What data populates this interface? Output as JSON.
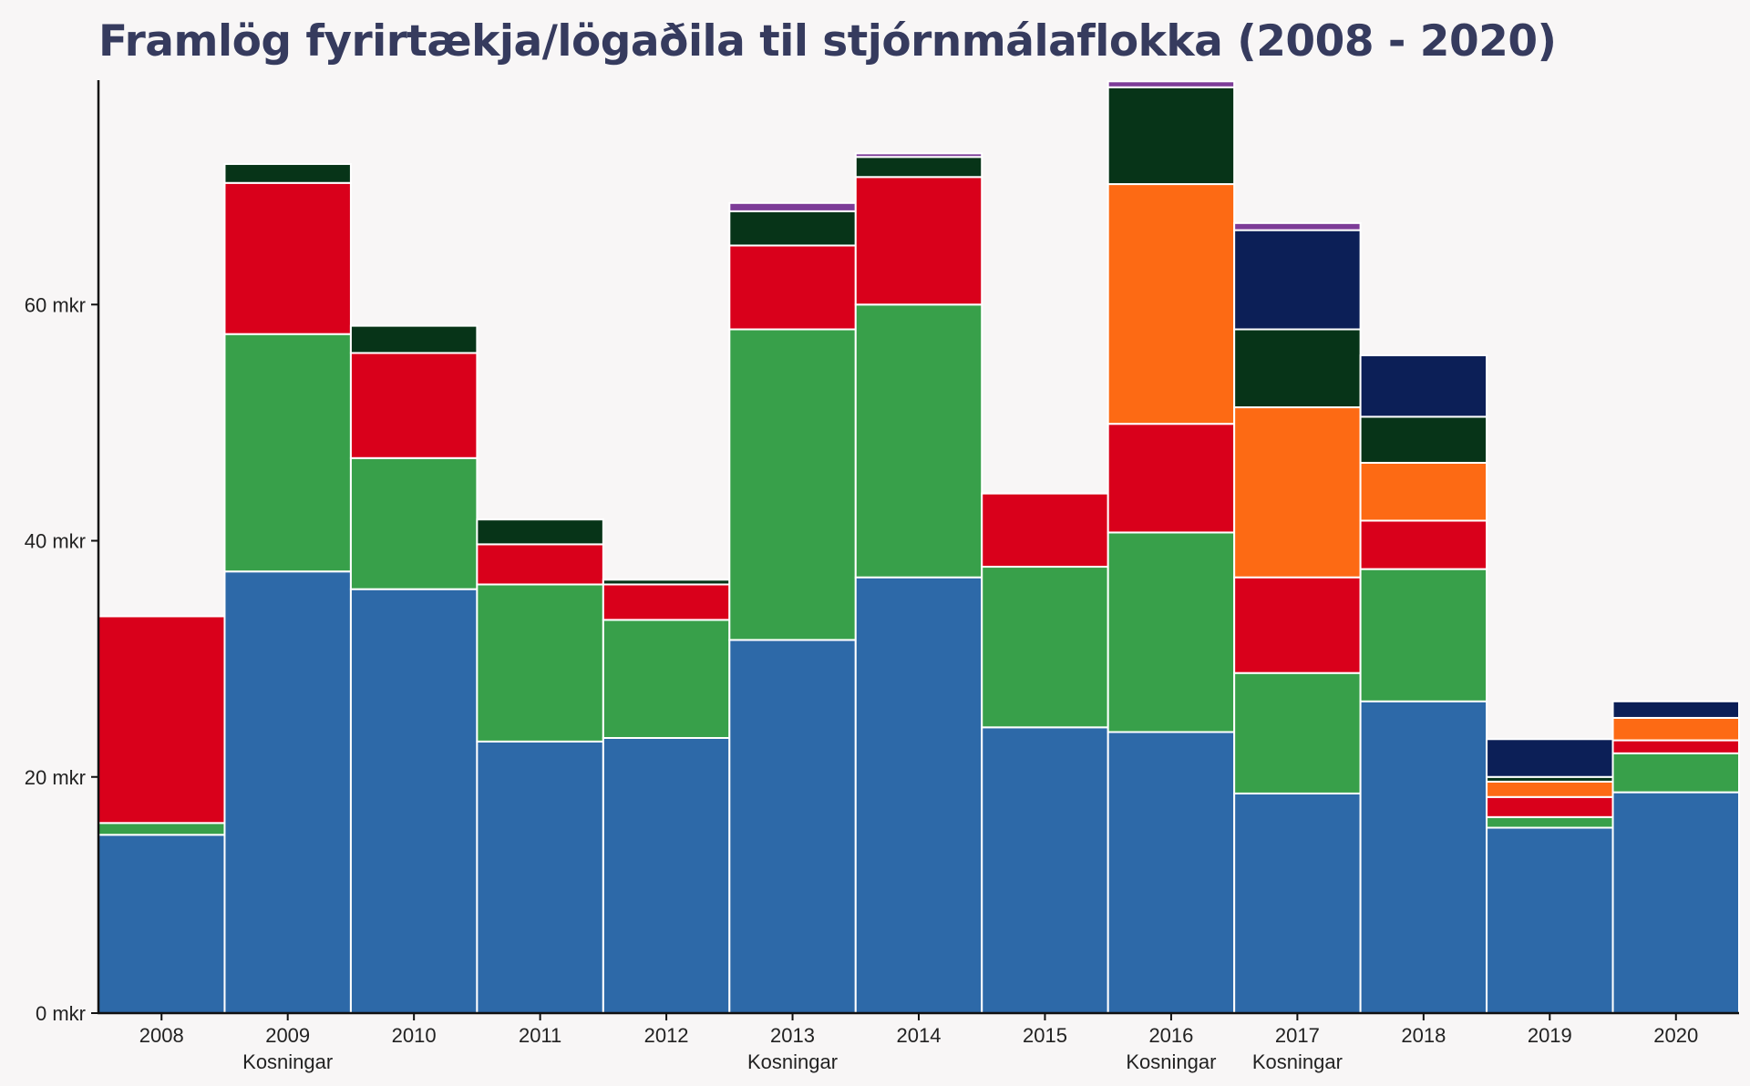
{
  "chart_data": {
    "type": "bar",
    "stacked": true,
    "title": "Framlög fyrirtækja/lögaðila til stjórnmálaflokka (2008 - 2020)",
    "xlabel": "",
    "ylabel": "",
    "ylim": [
      0,
      79
    ],
    "ytick_values": [
      0,
      20,
      40,
      60
    ],
    "ytick_labels": [
      "0 mkr",
      "20 mkr",
      "40 mkr",
      "60 mkr"
    ],
    "categories": [
      "2008",
      "2009",
      "2010",
      "2011",
      "2012",
      "2013",
      "2014",
      "2015",
      "2016",
      "2017",
      "2018",
      "2019",
      "2020"
    ],
    "sublabels": [
      "",
      "Kosningar",
      "",
      "",
      "",
      "Kosningar",
      "",
      "",
      "Kosningar",
      "Kosningar",
      "",
      "",
      ""
    ],
    "series": [
      {
        "name": "blue",
        "color": "#2d69a8",
        "values": [
          15.1,
          37.4,
          35.9,
          23.0,
          23.3,
          31.6,
          36.9,
          24.2,
          23.8,
          18.6,
          26.4,
          15.7,
          18.7
        ]
      },
      {
        "name": "green",
        "color": "#38a04a",
        "values": [
          1.0,
          20.1,
          11.1,
          13.3,
          10.0,
          26.3,
          23.1,
          13.6,
          16.9,
          10.2,
          11.2,
          0.9,
          3.3
        ]
      },
      {
        "name": "red",
        "color": "#d9001b",
        "values": [
          17.5,
          12.8,
          8.9,
          3.4,
          3.0,
          7.1,
          10.8,
          6.2,
          9.2,
          8.1,
          4.1,
          1.7,
          1.1
        ]
      },
      {
        "name": "orange",
        "color": "#fd6a14",
        "values": [
          0,
          0,
          0,
          0,
          0,
          0,
          0,
          0,
          20.3,
          14.4,
          4.9,
          1.3,
          1.9
        ]
      },
      {
        "name": "dark-green",
        "color": "#073418",
        "values": [
          0,
          1.6,
          2.3,
          2.1,
          0.4,
          2.9,
          1.7,
          0,
          8.2,
          6.6,
          3.9,
          0.4,
          0
        ]
      },
      {
        "name": "navy",
        "color": "#0c1f57",
        "values": [
          0,
          0,
          0,
          0,
          0,
          0,
          0,
          0,
          0,
          8.4,
          5.2,
          3.2,
          1.4
        ]
      },
      {
        "name": "purple",
        "color": "#7d3c98",
        "values": [
          0,
          0,
          0,
          0,
          0,
          0.7,
          0.3,
          0,
          0.5,
          0.6,
          0,
          0,
          0
        ]
      }
    ]
  }
}
